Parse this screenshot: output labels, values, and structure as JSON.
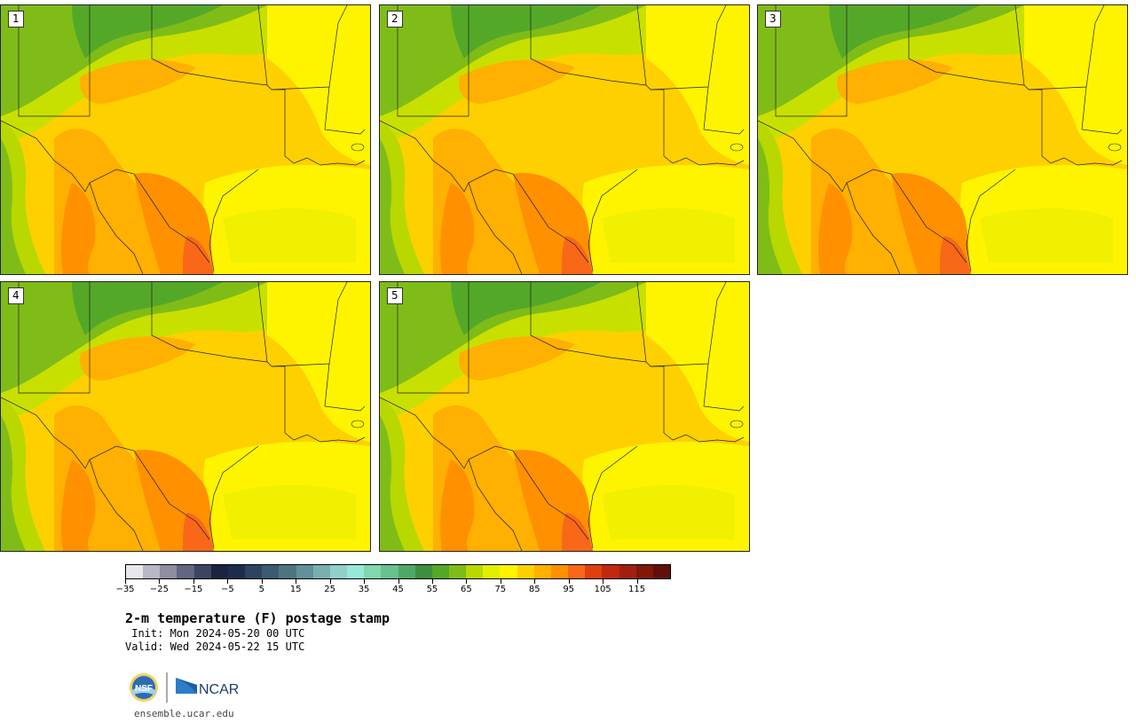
{
  "panels": [
    {
      "number": "1"
    },
    {
      "number": "2"
    },
    {
      "number": "3"
    },
    {
      "number": "4"
    },
    {
      "number": "5"
    }
  ],
  "colorbar": {
    "colors": [
      "#e8e8ec",
      "#b8b8c4",
      "#8e8ea0",
      "#626680",
      "#3c4462",
      "#1a2440",
      "#1c2c4a",
      "#2c4460",
      "#3c5a70",
      "#4e7480",
      "#62909a",
      "#78b0b0",
      "#90d0c8",
      "#98e8d8",
      "#80d8b0",
      "#68c090",
      "#50a868",
      "#3c9040",
      "#54a828",
      "#80bc18",
      "#b8d800",
      "#e0f000",
      "#fff400",
      "#ffd000",
      "#ffb000",
      "#ff9000",
      "#f86818",
      "#e04010",
      "#c02810",
      "#a02010",
      "#801808",
      "#601008"
    ],
    "tick_labels": [
      "−35",
      "−25",
      "−15",
      "−5",
      "5",
      "15",
      "25",
      "35",
      "45",
      "55",
      "65",
      "75",
      "85",
      "95",
      "105",
      "115"
    ]
  },
  "title": "2-m temperature (F) postage stamp",
  "init": " Init: Mon 2024-05-20 00 UTC",
  "valid": "Valid: Wed 2024-05-22 15 UTC",
  "logos": {
    "left": "NSF",
    "right": "NCAR"
  },
  "footer_url": "ensemble.ucar.edu"
}
